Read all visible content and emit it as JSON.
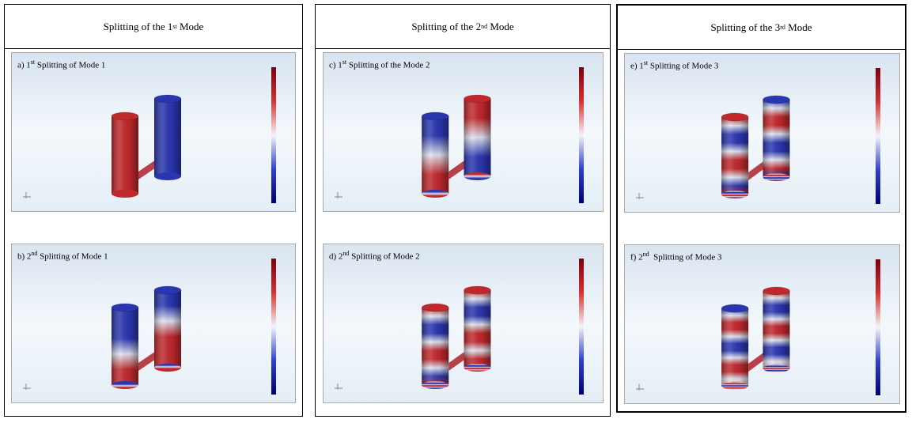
{
  "columns": [
    {
      "header": {
        "before": "Splitting of the 1",
        "sup": "st",
        "after": " Mode"
      },
      "panels": [
        {
          "label": {
            "before": "a) 1",
            "sup": "st",
            "after": " Splitting of Mode 1"
          }
        },
        {
          "label": {
            "before": "b) 2",
            "sup": "nd",
            "after": " Splitting of Mode 1"
          }
        }
      ]
    },
    {
      "header": {
        "before": "Splitting of the 2",
        "sup": "nd",
        "after": " Mode"
      },
      "panels": [
        {
          "label": {
            "before": "c) 1",
            "sup": "st",
            "after": " Splitting of the Mode 2"
          }
        },
        {
          "label": {
            "before": "d) 2",
            "sup": "nd",
            "after": " Splitting of Mode 2"
          }
        }
      ]
    },
    {
      "header": {
        "before": "Splitting of the 3",
        "sup": "rd",
        "after": " Mode"
      },
      "panels": [
        {
          "label": {
            "before": "e) 1",
            "sup": "st",
            "after": " Splitting of Mode 3"
          }
        },
        {
          "label": {
            "before": "f) 2",
            "sup": "nd",
            "after": "  Splitting of Mode 3"
          }
        }
      ]
    }
  ]
}
